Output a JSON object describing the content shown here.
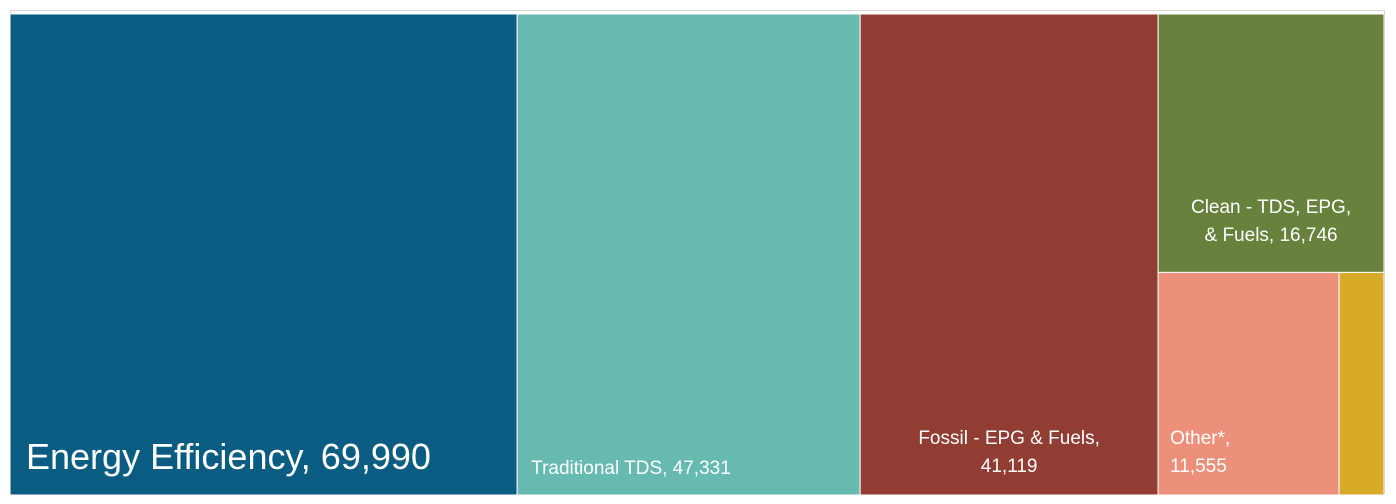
{
  "chart_data": {
    "type": "treemap",
    "title": "",
    "items": [
      {
        "name": "Energy Efficiency",
        "value": 69990,
        "label_lines": [
          "Energy Efficiency, 69,990"
        ],
        "color": "#0a5c83"
      },
      {
        "name": "Traditional TDS",
        "value": 47331,
        "label_lines": [
          "Traditional TDS, 47,331"
        ],
        "color": "#66bab0"
      },
      {
        "name": "Fossil - EPG & Fuels",
        "value": 41119,
        "label_lines": [
          "Fossil - EPG & Fuels,",
          "41,119"
        ],
        "color": "#923d34"
      },
      {
        "name": "Clean - TDS, EPG, & Fuels",
        "value": 16746,
        "label_lines": [
          "Clean - TDS, EPG,",
          "& Fuels, 16,746"
        ],
        "color": "#68823d"
      },
      {
        "name": "Other*",
        "value": 11555,
        "label_lines": [
          "Other*,",
          "11,555"
        ],
        "color": "#ec907c"
      },
      {
        "name": "",
        "value": 2870,
        "label_lines": [],
        "color": "#d7aa27"
      }
    ]
  }
}
